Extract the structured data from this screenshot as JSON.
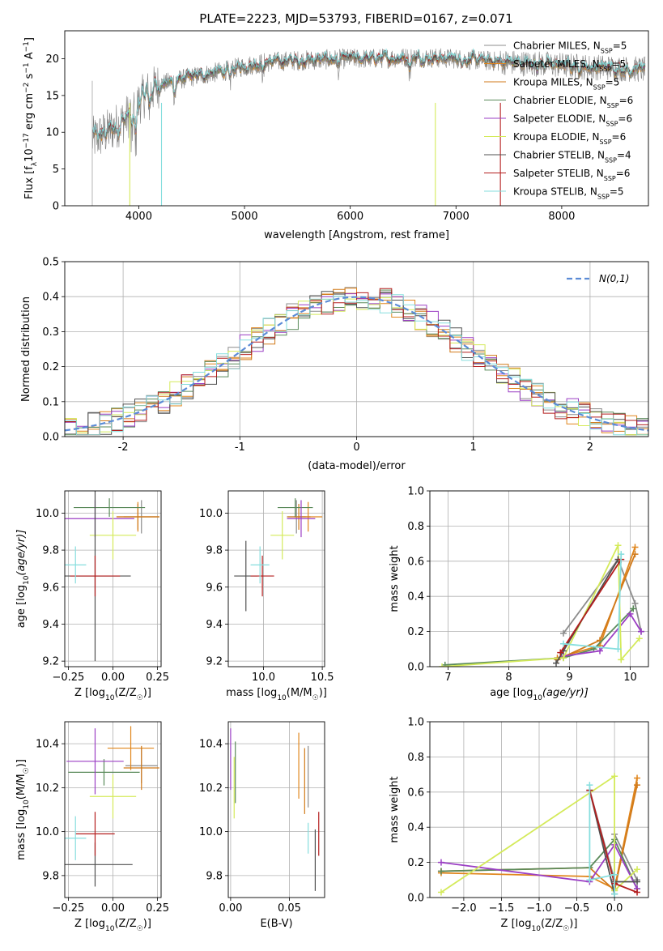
{
  "figure_title": "PLATE=2223, MJD=53793, FIBERID=0167, z=0.071",
  "model_names": [
    "Chabrier MILES",
    "Salpeter MILES",
    "Kroupa MILES",
    "Chabrier ELODIE",
    "Salpeter ELODIE",
    "Kroupa ELODIE",
    "Chabrier STELIB",
    "Salpeter STELIB",
    "Kroupa STELIB"
  ],
  "model_colors": [
    "#8c8c8c",
    "#e0861d",
    "#d17a1a",
    "#5a8a5a",
    "#9b3fc4",
    "#d4ea5a",
    "#505050",
    "#b41e1e",
    "#86dede"
  ],
  "chart_data": [
    {
      "id": "spectrum",
      "type": "line",
      "title": "PLATE=2223, MJD=53793, FIBERID=0167, z=0.071",
      "xlabel": "wavelength [Angstrom, rest frame]",
      "ylabel": "Flux [f_λ 10^-17 erg cm^-2 s^-1 A^-1]",
      "xlim": [
        3300,
        8820
      ],
      "ylim": [
        0,
        23.8
      ],
      "xticks": [
        4000,
        5000,
        6000,
        7000,
        8000
      ],
      "yticks": [
        0,
        5,
        10,
        15,
        20
      ],
      "grid": false,
      "legend_position": "top-right",
      "legend": [
        "Chabrier MILES, N_SSP=5",
        "Salpeter MILES, N_SSP=5",
        "Kroupa MILES, N_SSP=5",
        "Chabrier ELODIE, N_SSP=6",
        "Salpeter ELODIE, N_SSP=6",
        "Kroupa ELODIE, N_SSP=6",
        "Chabrier STELIB, N_SSP=4",
        "Salpeter STELIB, N_SSP=6",
        "Kroupa STELIB, N_SSP=5"
      ],
      "continuum": {
        "x": [
          3560,
          3700,
          3850,
          3950,
          4050,
          4200,
          4400,
          4600,
          4800,
          5000,
          5200,
          5400,
          5600,
          5800,
          6000,
          6200,
          6400,
          6600,
          6800,
          7000,
          7200,
          7400,
          7600,
          7800,
          8000,
          8200,
          8400,
          8800
        ],
        "y": [
          9,
          10,
          11.5,
          13,
          15,
          16.5,
          17.2,
          17.8,
          18.3,
          19,
          19.5,
          19.7,
          19.8,
          19.9,
          20,
          20,
          20.1,
          20.2,
          20.1,
          20,
          19.8,
          19.6,
          19.4,
          19.3,
          19.1,
          18.9,
          18.8,
          18.5
        ]
      }
    },
    {
      "id": "residuals",
      "type": "histogram",
      "xlabel": "(data-model)/error",
      "ylabel": "Normed distribution",
      "xlim": [
        -2.5,
        2.5
      ],
      "ylim": [
        0,
        0.5
      ],
      "xticks": [
        -2,
        -1,
        0,
        1,
        2
      ],
      "yticks": [
        0.0,
        0.1,
        0.2,
        0.3,
        0.4,
        0.5
      ],
      "grid": true,
      "legend_position": "top-right",
      "reference_curve": "N(0,1)",
      "bin_width": 0.1,
      "bin_start": -2.5
    },
    {
      "id": "age-metallicity",
      "type": "scatter",
      "xlabel": "Z [log10(Z/Z☉)]",
      "ylabel": "age [log10(age/yr)]",
      "xlim": [
        -0.27,
        0.27
      ],
      "ylim": [
        9.17,
        10.12
      ],
      "xticks": [
        -0.25,
        0.0,
        0.25
      ],
      "yticks": [
        9.2,
        9.4,
        9.6,
        9.8,
        10.0
      ],
      "grid": true,
      "points": [
        {
          "model": "Chabrier MILES",
          "x": 0.16,
          "y": 9.98,
          "xerr": 0.1,
          "yerr": 0.09
        },
        {
          "model": "Salpeter MILES",
          "x": 0.14,
          "y": 9.98,
          "xerr": 0.12,
          "yerr": 0.08
        },
        {
          "model": "Kroupa MILES",
          "x": 0.14,
          "y": 9.98,
          "xerr": 0.12,
          "yerr": 0.07
        },
        {
          "model": "Chabrier ELODIE",
          "x": -0.02,
          "y": 10.03,
          "xerr": 0.2,
          "yerr": 0.05
        },
        {
          "model": "Salpeter ELODIE",
          "x": -0.1,
          "y": 9.97,
          "xerr": 0.22,
          "yerr": 0.1
        },
        {
          "model": "Kroupa ELODIE",
          "x": 0.0,
          "y": 9.88,
          "xerr": 0.13,
          "yerr": 0.13
        },
        {
          "model": "Chabrier STELIB",
          "x": -0.1,
          "y": 9.66,
          "xerr": 0.2,
          "yerr": 0.46
        },
        {
          "model": "Salpeter STELIB",
          "x": -0.1,
          "y": 9.66,
          "xerr": 0.14,
          "yerr": 0.11
        },
        {
          "model": "Kroupa STELIB",
          "x": -0.21,
          "y": 9.72,
          "xerr": 0.06,
          "yerr": 0.1
        }
      ]
    },
    {
      "id": "age-mass",
      "type": "scatter",
      "xlabel": "mass [log10(M/M☉)]",
      "xlim": [
        9.7,
        10.52
      ],
      "ylim": [
        9.17,
        10.12
      ],
      "xticks": [
        10.0,
        10.5
      ],
      "yticks": [
        9.2,
        9.4,
        9.6,
        9.8,
        10.0
      ],
      "grid": true,
      "points": [
        {
          "model": "Chabrier MILES",
          "x": 10.28,
          "y": 9.98,
          "xerr": 0.08,
          "yerr": 0.09
        },
        {
          "model": "Salpeter MILES",
          "x": 10.38,
          "y": 9.98,
          "xerr": 0.12,
          "yerr": 0.08
        },
        {
          "model": "Kroupa MILES",
          "x": 10.3,
          "y": 9.98,
          "xerr": 0.1,
          "yerr": 0.07
        },
        {
          "model": "Chabrier ELODIE",
          "x": 10.27,
          "y": 10.03,
          "xerr": 0.15,
          "yerr": 0.05
        },
        {
          "model": "Salpeter ELODIE",
          "x": 10.32,
          "y": 9.97,
          "xerr": 0.12,
          "yerr": 0.1
        },
        {
          "model": "Kroupa ELODIE",
          "x": 10.16,
          "y": 9.88,
          "xerr": 0.1,
          "yerr": 0.13
        },
        {
          "model": "Chabrier STELIB",
          "x": 9.85,
          "y": 9.66,
          "xerr": 0.1,
          "yerr": 0.19
        },
        {
          "model": "Salpeter STELIB",
          "x": 9.99,
          "y": 9.66,
          "xerr": 0.1,
          "yerr": 0.11
        },
        {
          "model": "Kroupa STELIB",
          "x": 9.97,
          "y": 9.72,
          "xerr": 0.08,
          "yerr": 0.1
        }
      ]
    },
    {
      "id": "mass-weight-age",
      "type": "line",
      "xlabel": "age [log10(age/yr)]",
      "ylabel": "mass weight",
      "xlim": [
        6.7,
        10.3
      ],
      "ylim": [
        0,
        1.0
      ],
      "xticks": [
        7,
        8,
        9,
        10
      ],
      "yticks": [
        0.0,
        0.2,
        0.4,
        0.6,
        0.8,
        1.0
      ],
      "grid": true,
      "series": [
        {
          "model": "Chabrier MILES",
          "x": [
            8.9,
            9.8,
            10.08,
            10.18
          ],
          "y": [
            0.19,
            0.61,
            0.36,
            0.2
          ]
        },
        {
          "model": "Salpeter MILES",
          "x": [
            8.8,
            9.5,
            10.08
          ],
          "y": [
            0.05,
            0.12,
            0.68
          ]
        },
        {
          "model": "Kroupa MILES",
          "x": [
            8.8,
            9.5,
            10.08
          ],
          "y": [
            0.04,
            0.15,
            0.64
          ]
        },
        {
          "model": "Chabrier ELODIE",
          "x": [
            6.95,
            8.9,
            9.4,
            10.05
          ],
          "y": [
            0.01,
            0.05,
            0.1,
            0.33
          ]
        },
        {
          "model": "Salpeter ELODIE",
          "x": [
            8.9,
            9.5,
            10.0,
            10.18
          ],
          "y": [
            0.06,
            0.09,
            0.3,
            0.2
          ]
        },
        {
          "model": "Kroupa ELODIE",
          "x": [
            6.9,
            8.9,
            9.8,
            9.85,
            10.15
          ],
          "y": [
            0.0,
            0.05,
            0.69,
            0.04,
            0.16
          ]
        },
        {
          "model": "Chabrier STELIB",
          "x": [
            8.78,
            8.9,
            9.8
          ],
          "y": [
            0.02,
            0.09,
            0.61
          ]
        },
        {
          "model": "Salpeter STELIB",
          "x": [
            8.85,
            9.85
          ],
          "y": [
            0.08,
            0.61
          ]
        },
        {
          "model": "Kroupa STELIB",
          "x": [
            8.9,
            9.8,
            9.85
          ],
          "y": [
            0.13,
            0.1,
            0.64
          ]
        }
      ]
    },
    {
      "id": "mass-metallicity",
      "type": "scatter",
      "xlabel": "Z [log10(Z/Z☉)]",
      "ylabel": "mass [log10(M/M☉)]",
      "xlim": [
        -0.27,
        0.27
      ],
      "ylim": [
        9.7,
        10.5
      ],
      "xticks": [
        -0.25,
        0.0,
        0.25
      ],
      "yticks": [
        9.8,
        10.0,
        10.2,
        10.4
      ],
      "grid": true,
      "points": [
        {
          "model": "Chabrier MILES",
          "x": 0.16,
          "y": 10.3,
          "xerr": 0.09,
          "yerr": 0.08
        },
        {
          "model": "Salpeter MILES",
          "x": 0.1,
          "y": 10.38,
          "xerr": 0.13,
          "yerr": 0.1
        },
        {
          "model": "Kroupa MILES",
          "x": 0.16,
          "y": 10.29,
          "xerr": 0.1,
          "yerr": 0.1
        },
        {
          "model": "Chabrier ELODIE",
          "x": -0.05,
          "y": 10.27,
          "xerr": 0.2,
          "yerr": 0.06
        },
        {
          "model": "Salpeter ELODIE",
          "x": -0.1,
          "y": 10.32,
          "xerr": 0.16,
          "yerr": 0.15
        },
        {
          "model": "Kroupa ELODIE",
          "x": 0.0,
          "y": 10.16,
          "xerr": 0.13,
          "yerr": 0.1
        },
        {
          "model": "Chabrier STELIB",
          "x": -0.1,
          "y": 9.85,
          "xerr": 0.21,
          "yerr": 0.1
        },
        {
          "model": "Salpeter STELIB",
          "x": -0.1,
          "y": 9.99,
          "xerr": 0.11,
          "yerr": 0.1
        },
        {
          "model": "Kroupa STELIB",
          "x": -0.21,
          "y": 9.97,
          "xerr": 0.06,
          "yerr": 0.1
        }
      ]
    },
    {
      "id": "mass-extinction",
      "type": "errorbar",
      "xlabel": "E(B-V)",
      "xlim": [
        -0.002,
        0.08
      ],
      "ylim": [
        9.7,
        10.5
      ],
      "xticks": [
        0.0,
        0.05
      ],
      "yticks": [
        9.8,
        10.0,
        10.2,
        10.4
      ],
      "grid": true,
      "points": [
        {
          "model": "Chabrier MILES",
          "x": 0.066,
          "y": 10.25,
          "yerr": 0.14
        },
        {
          "model": "Salpeter MILES",
          "x": 0.058,
          "y": 10.3,
          "yerr": 0.15
        },
        {
          "model": "Kroupa MILES",
          "x": 0.063,
          "y": 10.23,
          "yerr": 0.15
        },
        {
          "model": "Chabrier ELODIE",
          "x": 0.004,
          "y": 10.27,
          "yerr": 0.14
        },
        {
          "model": "Salpeter ELODIE",
          "x": 0.0,
          "y": 10.33,
          "yerr": 0.14
        },
        {
          "model": "Kroupa ELODIE",
          "x": 0.003,
          "y": 10.2,
          "yerr": 0.14
        },
        {
          "model": "Chabrier STELIB",
          "x": 0.072,
          "y": 9.87,
          "yerr": 0.14
        },
        {
          "model": "Salpeter STELIB",
          "x": 0.075,
          "y": 9.99,
          "yerr": 0.1
        },
        {
          "model": "Kroupa STELIB",
          "x": 0.066,
          "y": 9.97,
          "yerr": 0.07
        }
      ]
    },
    {
      "id": "mass-weight-metallicity",
      "type": "line",
      "xlabel": "Z [log10(Z/Z☉)]",
      "ylabel": "mass weight",
      "xlim": [
        -2.45,
        0.45
      ],
      "ylim": [
        0,
        1.0
      ],
      "xticks": [
        -2.0,
        -1.5,
        -1.0,
        -0.5,
        0.0
      ],
      "yticks": [
        0.0,
        0.2,
        0.4,
        0.6,
        0.8,
        1.0
      ],
      "grid": true,
      "series": [
        {
          "model": "Chabrier MILES",
          "x": [
            -0.33,
            0.0,
            0.0,
            0.3
          ],
          "y": [
            0.61,
            0.1,
            0.36,
            0.1
          ]
        },
        {
          "model": "Salpeter MILES",
          "x": [
            -2.3,
            -0.33,
            0.0,
            0.3
          ],
          "y": [
            0.14,
            0.12,
            0.05,
            0.68
          ]
        },
        {
          "model": "Kroupa MILES",
          "x": [
            -2.3,
            -0.33,
            0.0,
            0.3
          ],
          "y": [
            0.15,
            0.17,
            0.04,
            0.64
          ]
        },
        {
          "model": "Chabrier ELODIE",
          "x": [
            -2.3,
            -0.33,
            0.0,
            0.3
          ],
          "y": [
            0.15,
            0.17,
            0.33,
            0.05
          ]
        },
        {
          "model": "Salpeter ELODIE",
          "x": [
            -2.3,
            -0.33,
            0.0,
            0.3
          ],
          "y": [
            0.2,
            0.09,
            0.3,
            0.05
          ]
        },
        {
          "model": "Kroupa ELODIE",
          "x": [
            -2.3,
            0.0,
            0.0,
            0.3
          ],
          "y": [
            0.03,
            0.69,
            0.04,
            0.16
          ]
        },
        {
          "model": "Chabrier STELIB",
          "x": [
            -0.33,
            0.0,
            0.0,
            0.3
          ],
          "y": [
            0.61,
            0.02,
            0.09,
            0.09
          ]
        },
        {
          "model": "Salpeter STELIB",
          "x": [
            -0.33,
            0.0,
            0.3
          ],
          "y": [
            0.61,
            0.08,
            0.03
          ]
        },
        {
          "model": "Kroupa STELIB",
          "x": [
            -0.33,
            -0.33,
            0.0,
            0.0
          ],
          "y": [
            0.64,
            0.1,
            0.13,
            0.02
          ]
        }
      ]
    }
  ]
}
